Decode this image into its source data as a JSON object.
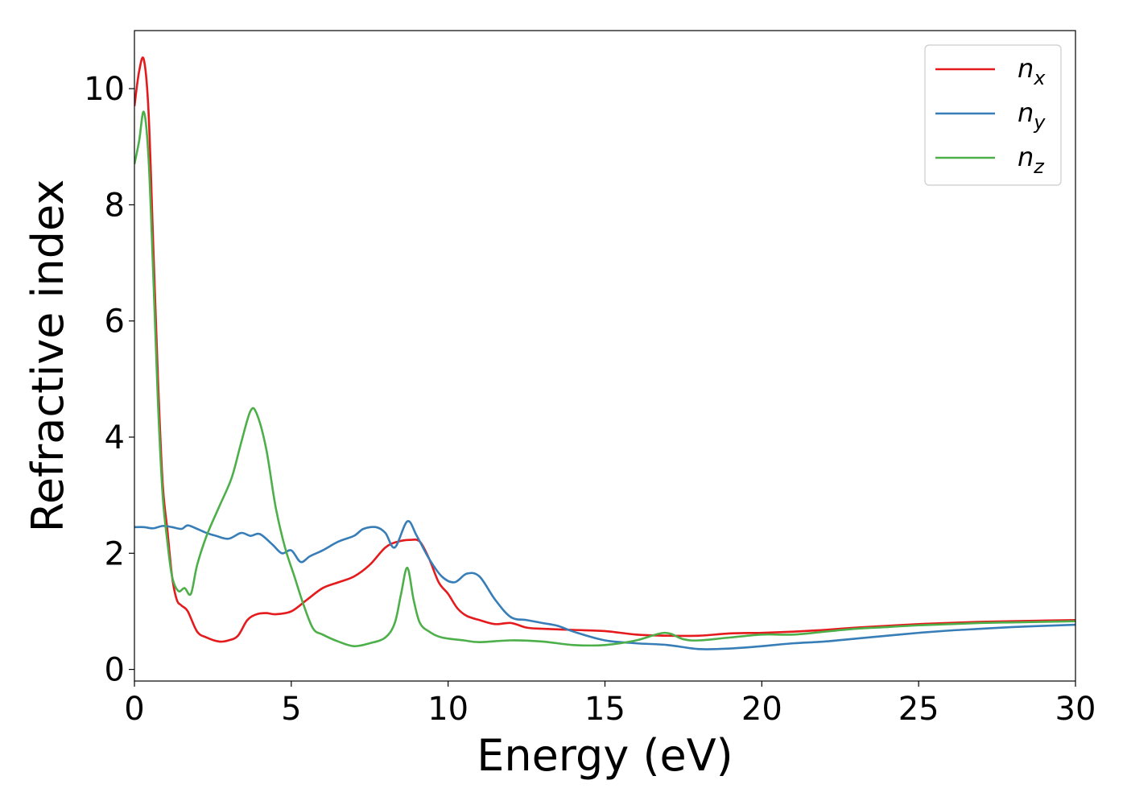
{
  "chart_data": {
    "type": "line",
    "title": "",
    "xlabel": "Energy (eV)",
    "ylabel": "Refractive index",
    "xlim": [
      0,
      30
    ],
    "ylim": [
      -0.2,
      11
    ],
    "xticks": [
      0,
      5,
      10,
      15,
      20,
      25,
      30
    ],
    "yticks": [
      0,
      2,
      4,
      6,
      8,
      10
    ],
    "grid": false,
    "legend_position": "top-right",
    "legend": [
      {
        "base": "n",
        "sub": "x",
        "color": "#e41a1c"
      },
      {
        "base": "n",
        "sub": "y",
        "color": "#377eb8"
      },
      {
        "base": "n",
        "sub": "z",
        "color": "#4daf4a"
      }
    ],
    "series": [
      {
        "name": "n_x",
        "color": "#e41a1c",
        "x": [
          0,
          0.15,
          0.3,
          0.45,
          0.6,
          0.75,
          0.9,
          1.05,
          1.2,
          1.35,
          1.5,
          1.7,
          2.0,
          2.3,
          2.7,
          3.0,
          3.3,
          3.6,
          3.9,
          4.2,
          4.5,
          5.0,
          5.5,
          6.0,
          6.5,
          7.0,
          7.5,
          8.0,
          8.4,
          8.8,
          9.1,
          9.4,
          9.7,
          10.0,
          10.3,
          10.6,
          11.0,
          11.5,
          12.0,
          12.5,
          13.0,
          14.0,
          15.0,
          16.0,
          17.0,
          18.0,
          19.0,
          20.0,
          21.0,
          22.0,
          23.0,
          24.0,
          25.0,
          26.0,
          27.0,
          28.0,
          29.0,
          30.0
        ],
        "y": [
          9.7,
          10.3,
          10.5,
          9.6,
          7.3,
          5.0,
          3.2,
          2.4,
          1.6,
          1.2,
          1.1,
          1.0,
          0.65,
          0.55,
          0.48,
          0.5,
          0.58,
          0.85,
          0.95,
          0.97,
          0.95,
          1.0,
          1.2,
          1.4,
          1.5,
          1.6,
          1.8,
          2.1,
          2.2,
          2.23,
          2.2,
          1.9,
          1.5,
          1.3,
          1.05,
          0.92,
          0.85,
          0.78,
          0.8,
          0.72,
          0.7,
          0.68,
          0.66,
          0.6,
          0.58,
          0.58,
          0.62,
          0.63,
          0.65,
          0.68,
          0.72,
          0.75,
          0.78,
          0.8,
          0.82,
          0.83,
          0.84,
          0.85
        ]
      },
      {
        "name": "n_y",
        "color": "#377eb8",
        "x": [
          0,
          0.3,
          0.6,
          0.9,
          1.2,
          1.5,
          1.7,
          2.0,
          2.3,
          2.6,
          3.0,
          3.4,
          3.7,
          4.0,
          4.4,
          4.7,
          5.0,
          5.3,
          5.6,
          6.0,
          6.5,
          7.0,
          7.3,
          7.7,
          8.0,
          8.3,
          8.7,
          9.0,
          9.4,
          9.8,
          10.2,
          10.6,
          11.0,
          11.5,
          12.0,
          12.5,
          13.0,
          13.5,
          14.0,
          15.0,
          16.0,
          17.0,
          18.0,
          19.0,
          20.0,
          21.0,
          22.0,
          23.0,
          24.0,
          25.0,
          26.0,
          27.0,
          28.0,
          29.0,
          30.0
        ],
        "y": [
          2.45,
          2.45,
          2.43,
          2.47,
          2.45,
          2.42,
          2.48,
          2.42,
          2.35,
          2.3,
          2.25,
          2.35,
          2.3,
          2.33,
          2.15,
          2.0,
          2.05,
          1.85,
          1.95,
          2.05,
          2.2,
          2.3,
          2.42,
          2.45,
          2.35,
          2.1,
          2.55,
          2.3,
          1.9,
          1.6,
          1.5,
          1.65,
          1.6,
          1.2,
          0.9,
          0.85,
          0.8,
          0.75,
          0.65,
          0.5,
          0.45,
          0.42,
          0.35,
          0.36,
          0.4,
          0.45,
          0.48,
          0.53,
          0.58,
          0.63,
          0.67,
          0.7,
          0.73,
          0.75,
          0.77
        ]
      },
      {
        "name": "n_z",
        "color": "#4daf4a",
        "x": [
          0,
          0.15,
          0.3,
          0.45,
          0.6,
          0.75,
          0.9,
          1.05,
          1.2,
          1.4,
          1.6,
          1.8,
          2.0,
          2.3,
          2.7,
          3.1,
          3.4,
          3.7,
          3.9,
          4.2,
          4.5,
          4.8,
          5.1,
          5.4,
          5.7,
          6.0,
          6.5,
          7.0,
          7.5,
          8.0,
          8.3,
          8.5,
          8.7,
          8.9,
          9.1,
          9.4,
          9.8,
          10.5,
          11.0,
          12.0,
          13.0,
          14.0,
          15.0,
          16.0,
          16.9,
          17.5,
          18.0,
          19.0,
          20.0,
          21.0,
          22.0,
          23.0,
          24.0,
          25.0,
          26.0,
          27.0,
          28.0,
          29.0,
          30.0
        ],
        "y": [
          8.7,
          9.1,
          9.6,
          8.8,
          6.8,
          4.6,
          3.0,
          2.2,
          1.6,
          1.35,
          1.4,
          1.3,
          1.8,
          2.3,
          2.8,
          3.3,
          3.9,
          4.45,
          4.4,
          3.8,
          2.8,
          2.1,
          1.6,
          1.1,
          0.7,
          0.6,
          0.48,
          0.4,
          0.45,
          0.55,
          0.8,
          1.3,
          1.75,
          1.2,
          0.8,
          0.65,
          0.55,
          0.5,
          0.47,
          0.5,
          0.48,
          0.42,
          0.42,
          0.5,
          0.63,
          0.52,
          0.5,
          0.55,
          0.6,
          0.6,
          0.65,
          0.7,
          0.73,
          0.76,
          0.78,
          0.8,
          0.81,
          0.82,
          0.83
        ]
      }
    ]
  }
}
